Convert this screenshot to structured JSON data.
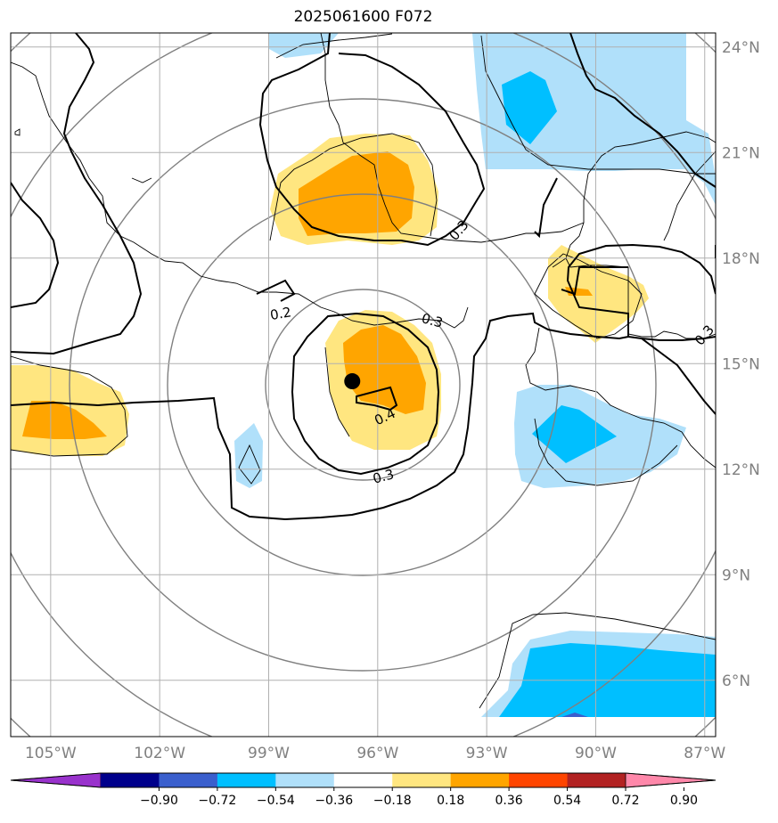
{
  "title": "2025061600 F072",
  "map": {
    "lon_range": [
      -106.1,
      -86.7
    ],
    "lat_range": [
      4.4,
      24.4
    ],
    "grid": true,
    "lon_ticks": [
      {
        "value": -105,
        "label": "105°W"
      },
      {
        "value": -102,
        "label": "102°W"
      },
      {
        "value": -99,
        "label": "99°W"
      },
      {
        "value": -96,
        "label": "96°W"
      },
      {
        "value": -93,
        "label": "93°W"
      },
      {
        "value": -90,
        "label": "90°W"
      },
      {
        "value": -87,
        "label": "87°W"
      }
    ],
    "lat_ticks": [
      {
        "value": 24,
        "label": "24°N"
      },
      {
        "value": 21,
        "label": "21°N"
      },
      {
        "value": 18,
        "label": "18°N"
      },
      {
        "value": 15,
        "label": "15°N"
      },
      {
        "value": 12,
        "label": "12°N"
      },
      {
        "value": 9,
        "label": "9°N"
      },
      {
        "value": 6,
        "label": "6°N"
      }
    ],
    "storm_center": {
      "lon": -96.7,
      "lat": 14.5
    },
    "contour_labels": [
      "0.2",
      "0.3",
      "0.3",
      "0.3",
      "0.4",
      "0.3"
    ]
  },
  "colorbar": {
    "ticks": [
      "−0.90",
      "−0.72",
      "−0.54",
      "−0.36",
      "−0.18",
      "0.18",
      "0.36",
      "0.54",
      "0.72",
      "0.90"
    ],
    "colors": [
      "#9932cc",
      "#00008b",
      "#3a5fcd",
      "#00bfff",
      "#b0e0fa",
      "#ffffff",
      "#ffe680",
      "#ffa500",
      "#ff4500",
      "#b22222",
      "#ff88aa"
    ],
    "extend": "both"
  },
  "colors": {
    "grid": "#b0b0b0",
    "range_rings": "#808080",
    "contour": "#000000"
  }
}
